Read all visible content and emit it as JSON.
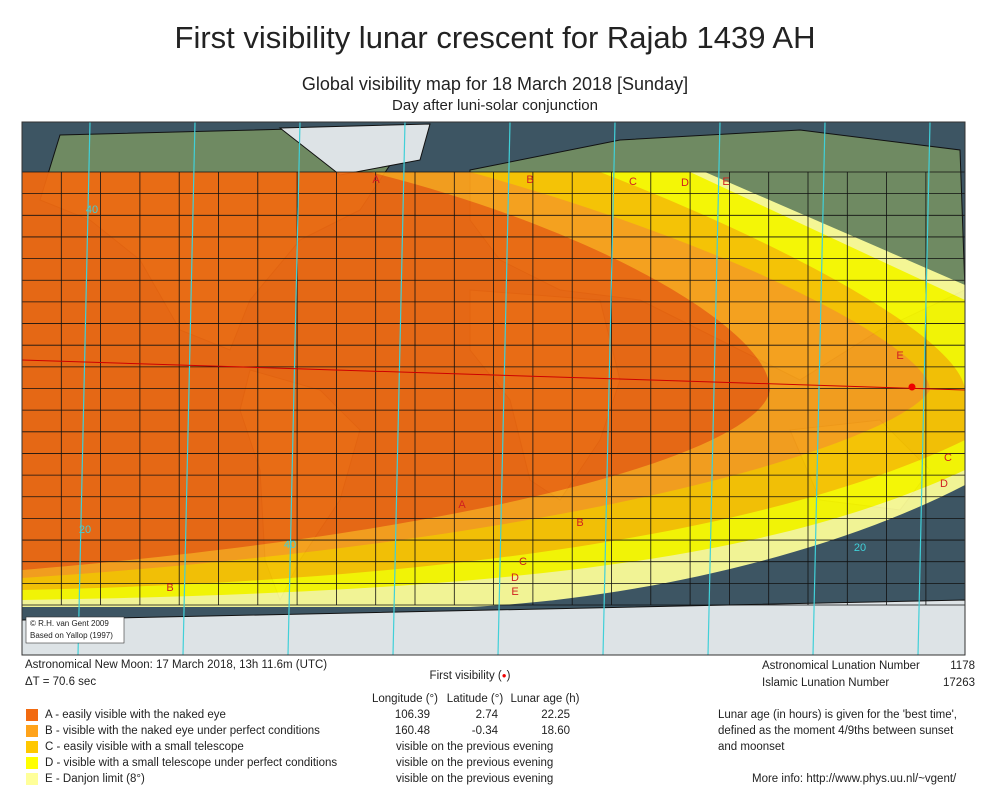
{
  "header": {
    "title": "First visibility lunar crescent for Rajab 1439 AH",
    "subtitle": "Global visibility map for 18 March 2018 [Sunday]",
    "note": "Day after luni-solar conjunction"
  },
  "map": {
    "credits": [
      "© R.H. van Gent 2009",
      "Based on Yallop (1997)"
    ],
    "zone_labels": [
      "A",
      "B",
      "C",
      "D",
      "E",
      "A",
      "B",
      "C",
      "D",
      "E",
      "B",
      "C",
      "D",
      "E"
    ],
    "contour_labels": [
      "40",
      "20",
      "40",
      "20"
    ]
  },
  "info": {
    "new_moon": "Astronomical New Moon: 17 March 2018, 13h 11.6m (UTC)",
    "delta_t": "ΔT = 70.6 sec",
    "first_visibility": [
      "First visibility (",
      "●",
      ")"
    ],
    "columns": [
      "Longitude (°)",
      "Latitude (°)",
      "Lunar age (h)"
    ],
    "zones": [
      {
        "label": "A - easily visible with the naked eye",
        "longitude": "106.39",
        "latitude": "2.74",
        "lunar_age": "22.25"
      },
      {
        "label": "B - visible with the naked eye under perfect conditions",
        "longitude": "160.48",
        "latitude": "-0.34",
        "lunar_age": "18.60"
      },
      {
        "label": "C - easily visible with a small telescope",
        "note": "visible on the previous evening"
      },
      {
        "label": "D - visible with a small telescope under perfect conditions",
        "note": "visible on the previous evening"
      },
      {
        "label": "E - Danjon limit (8°)",
        "note": "visible on the previous evening"
      }
    ],
    "lunation": [
      {
        "label": "Astronomical Lunation Number",
        "value": "1178"
      },
      {
        "label": "Islamic Lunation Number",
        "value": "17263"
      }
    ],
    "remark": [
      "Lunar age (in hours) is given for the 'best time',",
      "defined as the moment 4/9ths between sunset",
      "and moonset"
    ],
    "more_info": "More info: http://www.phys.uu.nl/~vgent/"
  }
}
